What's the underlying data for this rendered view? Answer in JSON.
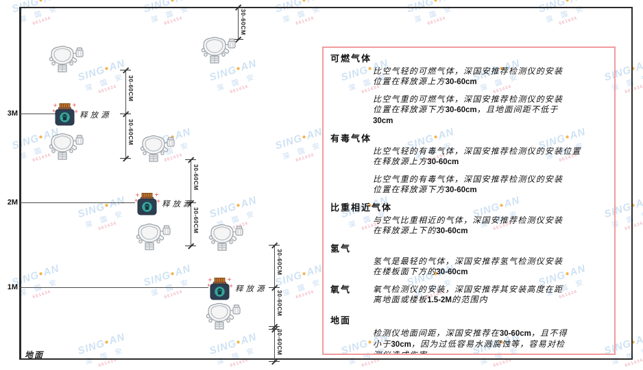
{
  "diagram": {
    "dim_label": "30-60CM",
    "release_source_label": "释放源",
    "ground_label": "地面",
    "levels": [
      {
        "label": "3M"
      },
      {
        "label": "2M"
      },
      {
        "label": "1M"
      }
    ]
  },
  "panel": {
    "sections": [
      {
        "heading": "可燃气体",
        "inline": false,
        "ground_gap": false,
        "paragraphs": [
          [
            "比空气轻的可燃气体，深国安推荐检测仪的安装",
            "位置在释放源上方30-60cm"
          ],
          [
            "比空气重的可燃气体，深国安推荐检测仪的安装",
            "位置在释放源下方30-60cm，且地面间距不低于",
            "30cm"
          ]
        ]
      },
      {
        "heading": "有毒气体",
        "inline": false,
        "ground_gap": false,
        "paragraphs": [
          [
            "比空气轻的有毒气体，深国安推荐检测仪的安装位置",
            "在释放源上方30-60cm"
          ],
          [
            "比空气重的有毒气体，深国安推荐检测仪的安装",
            "位置在释放源下方30-60cm"
          ]
        ]
      },
      {
        "heading": "比重相近气体",
        "inline": false,
        "ground_gap": false,
        "paragraphs": [
          [
            "与空气比重相近的气体，深国安推荐检测仪安装",
            "在释放源上下的30-60cm"
          ]
        ]
      },
      {
        "heading": "氢气",
        "inline": false,
        "ground_gap": false,
        "paragraphs": [
          [
            "氢气是最轻的气体，深国安推荐氢气检测仪安装",
            "在楼板面下方的30-60cm"
          ]
        ]
      },
      {
        "heading": "氧气",
        "inline": true,
        "ground_gap": false,
        "paragraphs": [
          [
            "氧气检测仪的安装，深国安推荐其安装高度在距",
            "离地面或楼板1.5-2M的范围内"
          ]
        ]
      },
      {
        "heading": "地面",
        "inline": false,
        "ground_gap": true,
        "paragraphs": [
          [
            "检测仪地面间距，深国安推荐在30-60cm，且不得",
            "小于30cm，因为过低容易水溅腐蚀等，容易对检",
            "测仪造成伤害"
          ]
        ]
      }
    ]
  },
  "watermark": {
    "brand_left": "SING",
    "dot": "●",
    "brand_right": "AN",
    "company": "深 国 安",
    "code": "661434"
  },
  "colors": {
    "panel_border": "#f29b9b",
    "watermark_blue": "#cfe2f3",
    "watermark_orange": "#f5b24a",
    "source_body": "#2c3e50",
    "source_cap": "#b9722e",
    "source_circle": "#35a79c"
  }
}
